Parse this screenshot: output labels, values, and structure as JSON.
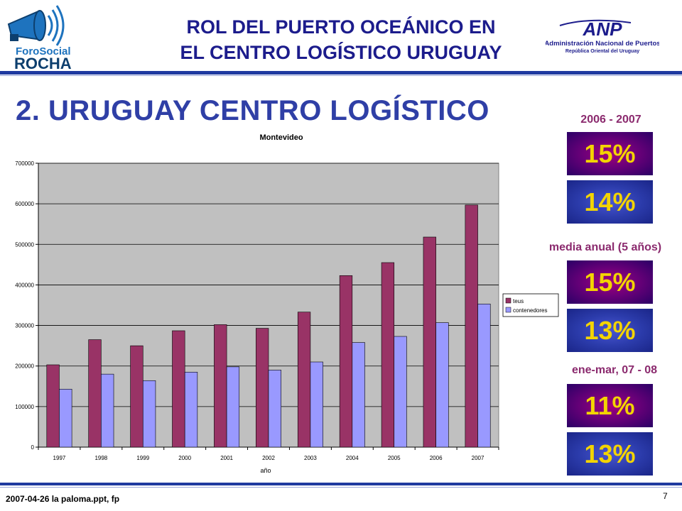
{
  "header": {
    "title_line1": "ROL DEL PUERTO OCEÁNICO EN",
    "title_line2": "EL CENTRO LOGÍSTICO URUGUAY",
    "logo_left_line1": "ForoSocial",
    "logo_left_line2": "ROCHA",
    "logo_right_mark": "ANP",
    "logo_right_line1": "Administración Nacional de Puertos",
    "logo_right_line2": "República Oriental del Uruguay"
  },
  "section_title": "2. URUGUAY CENTRO LOGÍSTICO",
  "colors": {
    "teus": "#993366",
    "contenedores": "#9999ff",
    "plot_bg": "#c0c0c0",
    "title_blue": "#1c1c8c",
    "stat_label": "#8b2a6e",
    "stat_value": "#f3d400"
  },
  "chart_data": {
    "type": "bar",
    "title": "Montevideo",
    "xlabel": "año",
    "ylabel": "",
    "ylim": [
      0,
      700000
    ],
    "yticks": [
      0,
      100000,
      200000,
      300000,
      400000,
      500000,
      600000,
      700000
    ],
    "ytick_labels": [
      "0",
      "100000",
      "200000",
      "300000",
      "400000",
      "500000",
      "600000",
      "700000"
    ],
    "grid": true,
    "legend_position": "right",
    "categories": [
      "1997",
      "1998",
      "1999",
      "2000",
      "2001",
      "2002",
      "2003",
      "2004",
      "2005",
      "2006",
      "2007"
    ],
    "series": [
      {
        "name": "teus",
        "values": [
          203000,
          265000,
          250000,
          287000,
          302000,
          293000,
          333000,
          423000,
          455000,
          518000,
          597000
        ]
      },
      {
        "name": "contenedores",
        "values": [
          143000,
          180000,
          164000,
          185000,
          198000,
          190000,
          210000,
          258000,
          273000,
          307000,
          353000
        ]
      }
    ]
  },
  "stats": [
    {
      "label": "2006 - 2007",
      "teus": "15%",
      "contenedores": "14%"
    },
    {
      "label": "media anual (5 años)",
      "teus": "15%",
      "contenedores": "13%"
    },
    {
      "label": "ene-mar, 07 - 08",
      "teus": "11%",
      "contenedores": "13%"
    }
  ],
  "footer": {
    "text": "2007-04-26  la paloma.ppt, fp",
    "page_number": "7"
  }
}
